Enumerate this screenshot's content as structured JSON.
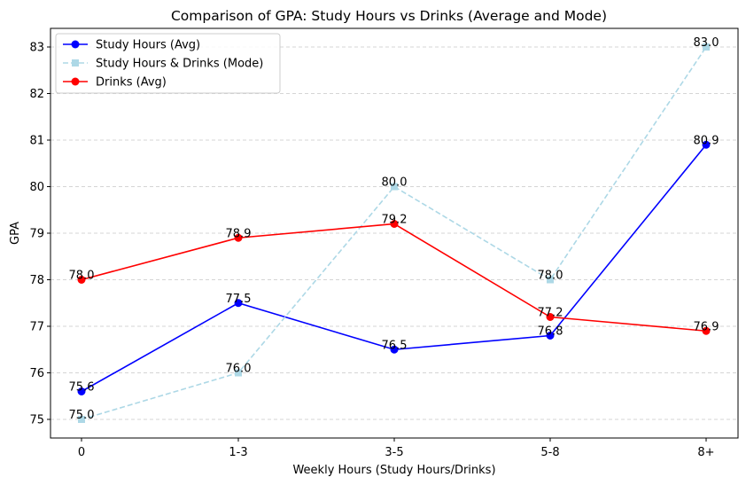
{
  "chart_data": {
    "type": "line",
    "title": "Comparison of GPA: Study Hours vs Drinks (Average and Mode)",
    "xlabel": "Weekly Hours (Study Hours/Drinks)",
    "ylabel": "GPA",
    "categories": [
      "0",
      "1-3",
      "3-5",
      "5-8",
      "8+"
    ],
    "ylim": [
      74.6,
      83.4
    ],
    "yticks": [
      75,
      76,
      77,
      78,
      79,
      80,
      81,
      82,
      83
    ],
    "ytick_labels": [
      "75",
      "76",
      "77",
      "78",
      "79",
      "80",
      "81",
      "82",
      "83"
    ],
    "grid": "y-dashed",
    "legend_position": "upper-left",
    "series": [
      {
        "name": "Study Hours (Avg)",
        "values": [
          75.6,
          77.5,
          76.5,
          76.8,
          80.9
        ],
        "labels": [
          "75.6",
          "77.5",
          "76.5",
          "76.8",
          "80.9"
        ],
        "color": "#0000ff",
        "style": "solid",
        "marker": "circle"
      },
      {
        "name": "Study Hours & Drinks (Mode)",
        "values": [
          75.0,
          76.0,
          80.0,
          78.0,
          83.0
        ],
        "labels": [
          "75.0",
          "76.0",
          "80.0",
          "78.0",
          "83.0"
        ],
        "color": "#add8e6",
        "style": "dashed",
        "marker": "square"
      },
      {
        "name": "Drinks (Avg)",
        "values": [
          78.0,
          78.9,
          79.2,
          77.2,
          76.9
        ],
        "labels": [
          "78.0",
          "78.9",
          "79.2",
          "77.2",
          "76.9"
        ],
        "color": "#ff0000",
        "style": "solid",
        "marker": "circle"
      }
    ]
  }
}
